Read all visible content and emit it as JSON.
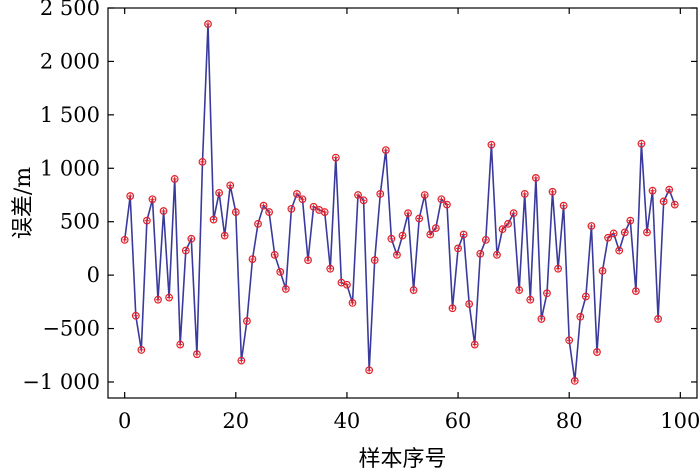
{
  "chart_data": {
    "type": "line",
    "title": "",
    "xlabel": "样本序号",
    "ylabel": "误差/m",
    "xlim": [
      -3,
      103
    ],
    "ylim": [
      -1150,
      2500
    ],
    "xticks": [
      0,
      20,
      40,
      60,
      80,
      100
    ],
    "xtick_labels": [
      "0",
      "20",
      "40",
      "60",
      "80",
      "100"
    ],
    "yticks": [
      -1000,
      -500,
      0,
      500,
      1000,
      1500,
      2000,
      2500
    ],
    "ytick_labels": [
      "−1 000",
      "−500",
      "0",
      "500",
      "1 000",
      "1 500",
      "2 000",
      "2 500"
    ],
    "grid": false,
    "colors": {
      "line": "#3a3a9c",
      "marker": "#e0202a"
    },
    "series": [
      {
        "x": [
          0,
          1,
          2,
          3,
          4,
          5,
          6,
          7,
          8,
          9,
          10,
          11,
          12,
          13,
          14,
          15,
          16,
          17,
          18,
          19,
          20,
          21,
          22,
          23,
          24,
          25,
          26,
          27,
          28,
          29,
          30,
          31,
          32,
          33,
          34,
          35,
          36,
          37,
          38,
          39,
          40,
          41,
          42,
          43,
          44,
          45,
          46,
          47,
          48,
          49,
          50,
          51,
          52,
          53,
          54,
          55,
          56,
          57,
          58,
          59,
          60,
          61,
          62,
          63,
          64,
          65,
          66,
          67,
          68,
          69,
          70,
          71,
          72,
          73,
          74,
          75,
          76,
          77,
          78,
          79,
          80,
          81,
          82,
          83,
          84,
          85,
          86,
          87,
          88,
          89,
          90,
          91,
          92,
          93,
          94,
          95,
          96,
          97,
          98,
          99
        ],
        "values": [
          330,
          740,
          -380,
          -700,
          510,
          710,
          -230,
          600,
          -210,
          900,
          -650,
          230,
          340,
          -740,
          1060,
          2350,
          520,
          770,
          370,
          840,
          590,
          -800,
          -430,
          150,
          480,
          650,
          590,
          190,
          30,
          -130,
          620,
          760,
          710,
          140,
          640,
          610,
          590,
          60,
          1100,
          -70,
          -90,
          -260,
          750,
          700,
          -890,
          140,
          760,
          1170,
          340,
          190,
          370,
          580,
          -140,
          530,
          750,
          380,
          440,
          710,
          660,
          -310,
          250,
          380,
          -270,
          -650,
          200,
          330,
          1220,
          190,
          430,
          480,
          580,
          -140,
          760,
          -230,
          910,
          -410,
          -170,
          780,
          60,
          650,
          -610,
          -990,
          -390,
          -200,
          460,
          -720,
          40,
          350,
          390,
          230,
          400,
          510,
          -150,
          1230,
          400,
          790,
          -410,
          690,
          800,
          660
        ]
      }
    ]
  }
}
